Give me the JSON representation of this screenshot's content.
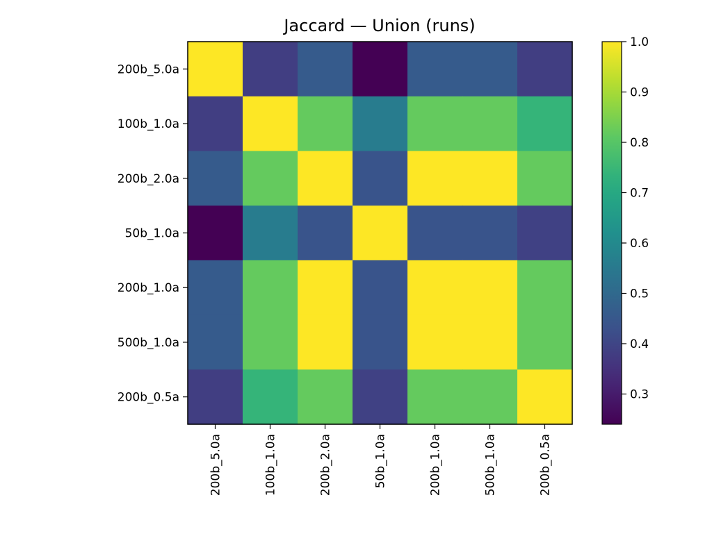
{
  "chart_data": {
    "type": "heatmap",
    "title": "Jaccard — Union (runs)",
    "xlabel": "",
    "ylabel": "",
    "x_categories": [
      "200b_5.0a",
      "100b_1.0a",
      "200b_2.0a",
      "50b_1.0a",
      "200b_1.0a",
      "500b_1.0a",
      "200b_0.5a"
    ],
    "y_categories": [
      "200b_5.0a",
      "100b_1.0a",
      "200b_2.0a",
      "50b_1.0a",
      "200b_1.0a",
      "500b_1.0a",
      "200b_0.5a"
    ],
    "values": [
      [
        1.0,
        0.38,
        0.46,
        0.24,
        0.46,
        0.46,
        0.38
      ],
      [
        0.38,
        1.0,
        0.82,
        0.56,
        0.82,
        0.82,
        0.74
      ],
      [
        0.46,
        0.82,
        1.0,
        0.44,
        1.0,
        1.0,
        0.82
      ],
      [
        0.24,
        0.56,
        0.44,
        1.0,
        0.44,
        0.44,
        0.39
      ],
      [
        0.46,
        0.82,
        1.0,
        0.44,
        1.0,
        1.0,
        0.82
      ],
      [
        0.46,
        0.82,
        1.0,
        0.44,
        1.0,
        1.0,
        0.82
      ],
      [
        0.38,
        0.74,
        0.82,
        0.39,
        0.82,
        0.82,
        1.0
      ]
    ],
    "colormap": "viridis",
    "vmin": 0.24,
    "vmax": 1.0,
    "colorbar_ticks": [
      0.3,
      0.4,
      0.5,
      0.6,
      0.7,
      0.8,
      0.9,
      1.0
    ],
    "colorbar_tick_labels": [
      "0.3",
      "0.4",
      "0.5",
      "0.6",
      "0.7",
      "0.8",
      "0.9",
      "1.0"
    ],
    "grid": false,
    "legend": "colorbar-right"
  }
}
